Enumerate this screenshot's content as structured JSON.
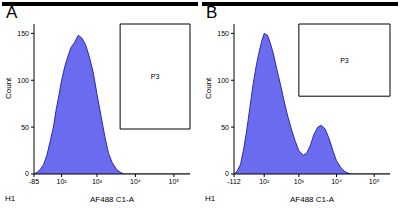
{
  "chart_data": [
    {
      "type": "area",
      "title": "A",
      "annotation": "H1",
      "x_label": "AF488 C1-A",
      "y_label": "Count",
      "log": "x",
      "grid": false,
      "color": "#6b6bf0",
      "x": [
        -85,
        -60,
        -40,
        -20,
        0,
        20,
        40,
        60,
        80,
        100,
        130,
        160,
        200,
        250,
        320,
        400,
        500,
        630,
        800,
        1000,
        1300,
        1600,
        2000,
        2500,
        3200,
        4000,
        5000,
        6300,
        8000,
        10000,
        13000,
        16000,
        20000,
        25000,
        32000,
        40000,
        50000,
        63000,
        80000,
        100000,
        130000,
        160000,
        200000,
        262144
      ],
      "values": [
        0,
        2,
        5,
        10,
        20,
        35,
        50,
        70,
        85,
        100,
        115,
        125,
        135,
        140,
        148,
        145,
        138,
        125,
        108,
        85,
        60,
        40,
        22,
        12,
        5,
        2,
        0,
        0,
        0,
        0,
        0,
        0,
        0,
        0,
        0,
        0,
        0,
        0,
        0,
        0,
        0,
        0,
        0,
        0
      ],
      "xlim": [
        -85,
        262144
      ],
      "xticks": [
        -85,
        {
          "value": 100,
          "label": "10²"
        },
        {
          "value": 1000,
          "label": "10³"
        },
        {
          "value": 10000,
          "label": "10⁴"
        },
        {
          "value": 100000,
          "label": "10⁵"
        }
      ],
      "ylim": [
        0,
        160
      ],
      "yticks": [
        0,
        50,
        100,
        150
      ],
      "gate": {
        "label": "P3",
        "x": [
          4000,
          262144
        ],
        "y": [
          48,
          160
        ]
      }
    },
    {
      "type": "area",
      "title": "B",
      "annotation": "H1",
      "x_label": "AF488 C1-A",
      "y_label": "Count",
      "log": "x",
      "grid": false,
      "color": "#6b6bf0",
      "x": [
        -112,
        -85,
        -60,
        -40,
        -20,
        0,
        20,
        40,
        60,
        80,
        100,
        130,
        160,
        200,
        250,
        320,
        400,
        500,
        630,
        800,
        1000,
        1300,
        1600,
        2000,
        2500,
        3200,
        4000,
        5000,
        6300,
        8000,
        10000,
        13000,
        16000,
        20000,
        25000,
        32000,
        40000,
        50000,
        63000,
        80000,
        100000,
        130000,
        160000,
        200000,
        262144
      ],
      "values": [
        0,
        3,
        10,
        25,
        45,
        70,
        95,
        115,
        130,
        142,
        150,
        148,
        140,
        128,
        112,
        95,
        78,
        62,
        48,
        35,
        25,
        20,
        22,
        30,
        42,
        50,
        52,
        48,
        38,
        25,
        14,
        7,
        3,
        1,
        0,
        0,
        0,
        0,
        0,
        0,
        0,
        0,
        0,
        0,
        0
      ],
      "xlim": [
        -112,
        262144
      ],
      "xticks": [
        -112,
        {
          "value": 100,
          "label": "10²"
        },
        {
          "value": 1000,
          "label": "10³"
        },
        {
          "value": 10000,
          "label": "10⁴"
        },
        {
          "value": 100000,
          "label": "10⁵"
        }
      ],
      "ylim": [
        0,
        160
      ],
      "yticks": [
        0,
        50,
        100,
        150
      ],
      "gate": {
        "label": "P3",
        "x": [
          1000,
          262144
        ],
        "y": [
          83,
          160
        ]
      }
    }
  ]
}
